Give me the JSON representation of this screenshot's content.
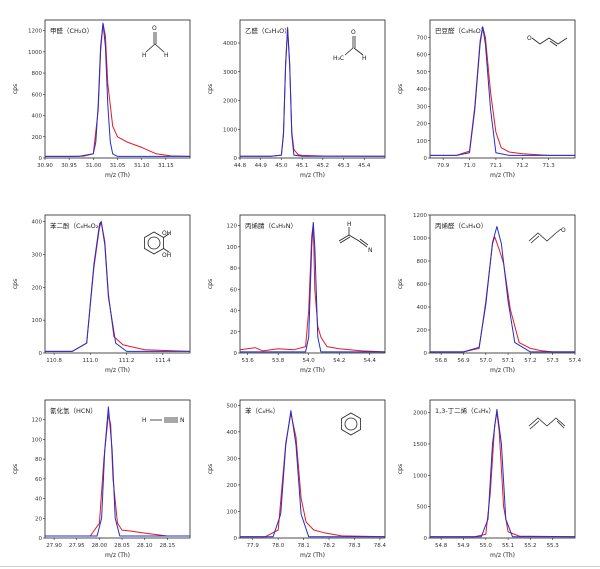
{
  "colors": {
    "measured": "#e8191e",
    "fit": "#1f2fd0",
    "axis": "#222222"
  },
  "chart_data": [
    {
      "type": "line",
      "title": "甲醛（CH₂O）",
      "xlabel": "m/z (Th)",
      "ylabel": "cps",
      "xlim": [
        30.9,
        31.2
      ],
      "ylim": [
        0,
        1300
      ],
      "xticks": [
        30.9,
        30.95,
        31.0,
        31.05,
        31.1,
        31.15
      ],
      "xtick_labels": [
        "30.90",
        "30.95",
        "31.00",
        "31.05",
        "31.10",
        "31.15"
      ],
      "yticks": [
        0,
        200,
        400,
        600,
        800,
        1000,
        1200
      ],
      "peak": {
        "center": 31.02,
        "height": 1270,
        "width": 0.009
      },
      "structure": "formaldehyde",
      "series": [
        {
          "color": "measured",
          "x": [
            30.9,
            30.95,
            30.98,
            31.0,
            31.01,
            31.015,
            31.02,
            31.025,
            31.03,
            31.04,
            31.05,
            31.07,
            31.1,
            31.13,
            31.16,
            31.2
          ],
          "y": [
            15,
            15,
            18,
            40,
            450,
            1000,
            1270,
            1150,
            700,
            300,
            200,
            150,
            100,
            40,
            20,
            15
          ]
        },
        {
          "color": "fit",
          "x": [
            30.9,
            30.97,
            31.0,
            31.005,
            31.01,
            31.015,
            31.02,
            31.025,
            31.03,
            31.035,
            31.04,
            31.05,
            31.1,
            31.2
          ],
          "y": [
            15,
            15,
            40,
            150,
            500,
            1050,
            1270,
            1050,
            500,
            150,
            40,
            15,
            15,
            15
          ]
        }
      ]
    },
    {
      "type": "line",
      "title": "乙醛（C₂H₄O）",
      "xlabel": "m/z (Th)",
      "ylabel": "cps",
      "xlim": [
        44.8,
        45.5
      ],
      "ylim": [
        0,
        4800
      ],
      "xticks": [
        44.8,
        44.9,
        45.0,
        45.1,
        45.2,
        45.3,
        45.4
      ],
      "xtick_labels": [
        "44.8",
        "44.9",
        "45.0",
        "45.1",
        "45.2",
        "45.3",
        "45.4"
      ],
      "yticks": [
        0,
        1000,
        2000,
        3000,
        4000
      ],
      "peak": {
        "center": 45.03,
        "height": 4500,
        "width": 0.012
      },
      "structure": "acetaldehyde",
      "series": [
        {
          "color": "measured",
          "x": [
            44.8,
            44.95,
            45.0,
            45.01,
            45.02,
            45.03,
            45.04,
            45.05,
            45.06,
            45.08,
            45.1,
            45.2,
            45.5
          ],
          "y": [
            60,
            60,
            100,
            900,
            3300,
            4550,
            3300,
            900,
            300,
            120,
            90,
            70,
            60
          ]
        },
        {
          "color": "fit",
          "x": [
            44.8,
            44.95,
            45.0,
            45.01,
            45.02,
            45.03,
            45.04,
            45.05,
            45.06,
            45.1,
            45.5
          ],
          "y": [
            60,
            60,
            100,
            800,
            3200,
            4500,
            3200,
            800,
            100,
            60,
            60
          ]
        }
      ]
    },
    {
      "type": "line",
      "title": "巴豆醛（C₄H₆O）",
      "xlabel": "m/z (Th)",
      "ylabel": "cps",
      "xlim": [
        70.85,
        71.4
      ],
      "ylim": [
        0,
        800
      ],
      "xticks": [
        70.9,
        71.0,
        71.1,
        71.2,
        71.3
      ],
      "xtick_labels": [
        "70.9",
        "71.0",
        "71.1",
        "71.2",
        "71.3"
      ],
      "yticks": [
        0,
        100,
        200,
        300,
        400,
        500,
        600,
        700
      ],
      "peak": {
        "center": 71.05,
        "height": 760,
        "width": 0.02
      },
      "structure": "crotonaldehyde",
      "series": [
        {
          "color": "measured",
          "x": [
            70.85,
            70.95,
            71.0,
            71.02,
            71.04,
            71.05,
            71.06,
            71.08,
            71.1,
            71.12,
            71.15,
            71.2,
            71.3,
            71.4
          ],
          "y": [
            15,
            15,
            40,
            300,
            680,
            760,
            700,
            380,
            150,
            60,
            35,
            25,
            15,
            15
          ]
        },
        {
          "color": "fit",
          "x": [
            70.85,
            70.95,
            71.0,
            71.02,
            71.04,
            71.05,
            71.06,
            71.08,
            71.1,
            71.15,
            71.4
          ],
          "y": [
            15,
            15,
            30,
            280,
            660,
            760,
            660,
            280,
            30,
            15,
            15
          ]
        }
      ]
    },
    {
      "type": "line",
      "title": "苯二酚（C₆H₆O₂）",
      "xlabel": "m/z (Th)",
      "ylabel": "cps",
      "xlim": [
        110.75,
        111.55
      ],
      "ylim": [
        0,
        420
      ],
      "xticks": [
        110.8,
        111.0,
        111.2,
        111.4
      ],
      "xtick_labels": [
        "110.8",
        "111.0",
        "111.2",
        "111.4"
      ],
      "yticks": [
        0,
        100,
        200,
        300,
        400
      ],
      "peak": {
        "center": 111.06,
        "height": 400,
        "width": 0.025
      },
      "structure": "benzenediol",
      "series": [
        {
          "color": "measured",
          "x": [
            110.75,
            110.9,
            110.98,
            111.02,
            111.05,
            111.06,
            111.08,
            111.1,
            111.13,
            111.18,
            111.3,
            111.55
          ],
          "y": [
            5,
            5,
            30,
            260,
            380,
            400,
            340,
            180,
            50,
            25,
            10,
            5
          ]
        },
        {
          "color": "fit",
          "x": [
            110.75,
            110.9,
            110.98,
            111.02,
            111.05,
            111.06,
            111.08,
            111.1,
            111.14,
            111.2,
            111.55
          ],
          "y": [
            5,
            5,
            30,
            270,
            390,
            400,
            330,
            170,
            30,
            5,
            5
          ]
        }
      ]
    },
    {
      "type": "line",
      "title": "丙烯腈（C₃H₃N）",
      "xlabel": "m/z (Th)",
      "ylabel": "cps",
      "xlim": [
        53.55,
        54.5
      ],
      "ylim": [
        0,
        130
      ],
      "xticks": [
        53.6,
        53.8,
        54.0,
        54.2,
        54.4
      ],
      "xtick_labels": [
        "53.6",
        "53.8",
        "54.0",
        "54.2",
        "54.4"
      ],
      "yticks": [
        0,
        20,
        40,
        60,
        80,
        100,
        120
      ],
      "peak": {
        "center": 54.03,
        "height": 123,
        "width": 0.012
      },
      "structure": "acrylonitrile",
      "series": [
        {
          "color": "measured",
          "x": [
            53.55,
            53.65,
            53.7,
            53.8,
            53.9,
            53.98,
            54.0,
            54.02,
            54.03,
            54.04,
            54.06,
            54.08,
            54.12,
            54.2,
            54.35,
            54.5
          ],
          "y": [
            3,
            5,
            2,
            4,
            3,
            6,
            40,
            110,
            122,
            60,
            25,
            15,
            6,
            4,
            2,
            1
          ]
        },
        {
          "color": "fit",
          "x": [
            53.55,
            53.98,
            54.0,
            54.02,
            54.03,
            54.04,
            54.06,
            54.08,
            54.5
          ],
          "y": [
            1,
            1,
            15,
            100,
            123,
            100,
            15,
            1,
            1
          ]
        }
      ]
    },
    {
      "type": "line",
      "title": "丙烯醛（C₃H₄O）",
      "xlabel": "m/z (Th)",
      "ylabel": "cps",
      "xlim": [
        56.75,
        57.4
      ],
      "ylim": [
        0,
        1200
      ],
      "xticks": [
        56.8,
        56.9,
        57.0,
        57.1,
        57.2,
        57.3,
        57.4
      ],
      "xtick_labels": [
        "56.8",
        "56.9",
        "57.0",
        "57.1",
        "57.2",
        "57.3",
        "57.4"
      ],
      "yticks": [
        0,
        200,
        400,
        600,
        800,
        1000,
        1200
      ],
      "peak": {
        "center": 57.05,
        "height": 1100,
        "width": 0.03
      },
      "structure": "acrolein",
      "series": [
        {
          "color": "measured",
          "x": [
            56.75,
            56.9,
            56.97,
            57.0,
            57.03,
            57.04,
            57.06,
            57.08,
            57.11,
            57.15,
            57.2,
            57.25,
            57.3,
            57.4
          ],
          "y": [
            10,
            10,
            40,
            450,
            950,
            1010,
            900,
            780,
            380,
            90,
            40,
            20,
            10,
            10
          ]
        },
        {
          "color": "fit",
          "x": [
            56.75,
            56.9,
            56.97,
            57.0,
            57.03,
            57.05,
            57.07,
            57.1,
            57.13,
            57.2,
            57.4
          ],
          "y": [
            10,
            10,
            50,
            420,
            960,
            1100,
            950,
            450,
            90,
            10,
            10
          ]
        }
      ]
    },
    {
      "type": "line",
      "title": "氰化氢（HCN）",
      "xlabel": "m/z (Th)",
      "ylabel": "cps",
      "xlim": [
        27.88,
        28.2
      ],
      "ylim": [
        0,
        140
      ],
      "xticks": [
        27.9,
        27.95,
        28.0,
        28.05,
        28.1,
        28.15
      ],
      "xtick_labels": [
        "27.90",
        "27.95",
        "28.00",
        "28.05",
        "28.10",
        "28.15"
      ],
      "yticks": [
        0,
        20,
        40,
        60,
        80,
        100,
        120
      ],
      "peak": {
        "center": 28.02,
        "height": 133,
        "width": 0.008
      },
      "structure": "hcn",
      "series": [
        {
          "color": "measured",
          "x": [
            27.88,
            27.98,
            28.0,
            28.01,
            28.02,
            28.025,
            28.03,
            28.04,
            28.05,
            28.07,
            28.1,
            28.15,
            28.2
          ],
          "y": [
            2,
            2,
            15,
            80,
            125,
            115,
            60,
            15,
            8,
            7,
            5,
            2,
            2
          ]
        },
        {
          "color": "fit",
          "x": [
            27.88,
            27.995,
            28.005,
            28.012,
            28.02,
            28.028,
            28.035,
            28.045,
            28.2
          ],
          "y": [
            2,
            2,
            20,
            90,
            133,
            90,
            20,
            2,
            2
          ]
        }
      ]
    },
    {
      "type": "line",
      "title": "苯（C₆H₆）",
      "xlabel": "m/z (Th)",
      "ylabel": "cps",
      "xlim": [
        77.85,
        78.42
      ],
      "ylim": [
        0,
        520
      ],
      "xticks": [
        77.9,
        78.0,
        78.1,
        78.2,
        78.3,
        78.4
      ],
      "xtick_labels": [
        "77.9",
        "78.0",
        "78.1",
        "78.2",
        "78.3",
        "78.4"
      ],
      "yticks": [
        0,
        100,
        200,
        300,
        400,
        500
      ],
      "peak": {
        "center": 78.05,
        "height": 480,
        "width": 0.02
      },
      "structure": "benzene",
      "series": [
        {
          "color": "measured",
          "x": [
            77.85,
            77.95,
            78.0,
            78.03,
            78.05,
            78.07,
            78.09,
            78.11,
            78.14,
            78.18,
            78.25,
            78.42
          ],
          "y": [
            5,
            5,
            30,
            360,
            470,
            380,
            150,
            60,
            30,
            20,
            8,
            5
          ]
        },
        {
          "color": "fit",
          "x": [
            77.85,
            77.98,
            78.01,
            78.03,
            78.05,
            78.07,
            78.09,
            78.12,
            78.42
          ],
          "y": [
            5,
            5,
            90,
            350,
            480,
            350,
            90,
            5,
            5
          ]
        }
      ]
    },
    {
      "type": "line",
      "title": "1,3-丁二烯（C₄H₆）",
      "xlabel": "m/z (Th)",
      "ylabel": "cps",
      "xlim": [
        54.75,
        55.4
      ],
      "ylim": [
        0,
        2200
      ],
      "xticks": [
        54.8,
        54.9,
        55.0,
        55.1,
        55.2,
        55.3
      ],
      "xtick_labels": [
        "54.8",
        "54.9",
        "55.0",
        "55.1",
        "55.2",
        "55.3"
      ],
      "yticks": [
        0,
        500,
        1000,
        1500,
        2000
      ],
      "peak": {
        "center": 55.05,
        "height": 2050,
        "width": 0.014
      },
      "structure": "butadiene",
      "series": [
        {
          "color": "measured",
          "x": [
            54.75,
            54.95,
            55.0,
            55.02,
            55.04,
            55.05,
            55.06,
            55.08,
            55.1,
            55.15,
            55.4
          ],
          "y": [
            20,
            20,
            60,
            700,
            1800,
            2000,
            1700,
            500,
            100,
            30,
            20
          ]
        },
        {
          "color": "fit",
          "x": [
            54.75,
            54.98,
            55.01,
            55.03,
            55.05,
            55.07,
            55.09,
            55.12,
            55.4
          ],
          "y": [
            20,
            20,
            300,
            1500,
            2050,
            1500,
            300,
            20,
            20
          ]
        }
      ]
    }
  ]
}
